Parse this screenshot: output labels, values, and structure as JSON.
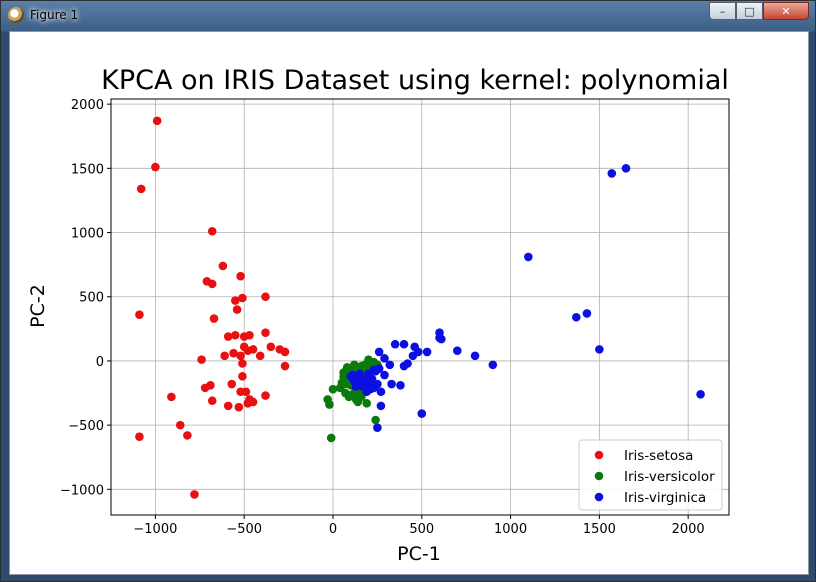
{
  "window": {
    "title": "Figure 1"
  },
  "controls": {
    "minimize": "–",
    "maximize": "□",
    "close": "✕"
  },
  "chart_data": {
    "type": "scatter",
    "title": "KPCA on IRIS Dataset using kernel: polynomial",
    "xlabel": "PC-1",
    "ylabel": "PC-2",
    "xlim": [
      -1250,
      2230
    ],
    "ylim": [
      -1200,
      2040
    ],
    "xticks": [
      -1000,
      -500,
      0,
      500,
      1000,
      1500,
      2000
    ],
    "xtick_labels": [
      "−1000",
      "−500",
      "0",
      "500",
      "1000",
      "1500",
      "2000"
    ],
    "yticks": [
      -1000,
      -500,
      0,
      500,
      1000,
      1500,
      2000
    ],
    "ytick_labels": [
      "−1000",
      "−500",
      "0",
      "500",
      "1000",
      "1500",
      "2000"
    ],
    "grid": true,
    "legend_position": "lower-right",
    "series": [
      {
        "name": "Iris-setosa",
        "color": "#e81010",
        "points": [
          [
            -990,
            1870
          ],
          [
            -1000,
            1510
          ],
          [
            -1080,
            1340
          ],
          [
            -680,
            1010
          ],
          [
            -620,
            740
          ],
          [
            -710,
            620
          ],
          [
            -680,
            600
          ],
          [
            -520,
            660
          ],
          [
            -550,
            470
          ],
          [
            -510,
            490
          ],
          [
            -540,
            400
          ],
          [
            -380,
            500
          ],
          [
            -1090,
            360
          ],
          [
            -670,
            330
          ],
          [
            -550,
            200
          ],
          [
            -500,
            190
          ],
          [
            -470,
            200
          ],
          [
            -380,
            220
          ],
          [
            -590,
            190
          ],
          [
            -500,
            110
          ],
          [
            -480,
            80
          ],
          [
            -450,
            90
          ],
          [
            -410,
            40
          ],
          [
            -350,
            110
          ],
          [
            -300,
            90
          ],
          [
            -270,
            70
          ],
          [
            -520,
            40
          ],
          [
            -610,
            40
          ],
          [
            -740,
            10
          ],
          [
            -510,
            -20
          ],
          [
            -270,
            -40
          ],
          [
            -570,
            -180
          ],
          [
            -690,
            -190
          ],
          [
            -720,
            -210
          ],
          [
            -520,
            -240
          ],
          [
            -490,
            -240
          ],
          [
            -380,
            -270
          ],
          [
            -470,
            -300
          ],
          [
            -480,
            -330
          ],
          [
            -910,
            -280
          ],
          [
            -680,
            -310
          ],
          [
            -590,
            -350
          ],
          [
            -510,
            -120
          ],
          [
            -860,
            -500
          ],
          [
            -820,
            -580
          ],
          [
            -1090,
            -590
          ],
          [
            -780,
            -1040
          ],
          [
            -530,
            -360
          ],
          [
            -560,
            60
          ],
          [
            -450,
            -320
          ]
        ]
      },
      {
        "name": "Iris-versicolor",
        "color": "#0b7a0b",
        "points": [
          [
            -30,
            -300
          ],
          [
            -20,
            -340
          ],
          [
            -10,
            -600
          ],
          [
            0,
            -220
          ],
          [
            40,
            -210
          ],
          [
            60,
            -120
          ],
          [
            50,
            -170
          ],
          [
            70,
            -180
          ],
          [
            80,
            -80
          ],
          [
            100,
            -60
          ],
          [
            110,
            -260
          ],
          [
            120,
            -90
          ],
          [
            130,
            -100
          ],
          [
            140,
            -320
          ],
          [
            150,
            -130
          ],
          [
            160,
            -40
          ],
          [
            170,
            -60
          ],
          [
            180,
            -110
          ],
          [
            190,
            -200
          ],
          [
            200,
            -150
          ],
          [
            210,
            -80
          ],
          [
            190,
            -330
          ],
          [
            240,
            -460
          ],
          [
            230,
            -10
          ],
          [
            250,
            -30
          ],
          [
            90,
            -140
          ],
          [
            110,
            -140
          ],
          [
            140,
            -170
          ],
          [
            60,
            -90
          ],
          [
            80,
            -50
          ],
          [
            120,
            -200
          ],
          [
            160,
            -280
          ],
          [
            150,
            -250
          ],
          [
            200,
            -60
          ],
          [
            170,
            -120
          ],
          [
            130,
            -300
          ],
          [
            100,
            -190
          ],
          [
            70,
            -250
          ],
          [
            90,
            -280
          ],
          [
            120,
            -30
          ],
          [
            200,
            10
          ],
          [
            180,
            -30
          ],
          [
            140,
            -50
          ],
          [
            160,
            -200
          ],
          [
            100,
            -110
          ],
          [
            60,
            -150
          ],
          [
            210,
            -40
          ],
          [
            180,
            -170
          ],
          [
            130,
            -60
          ],
          [
            150,
            -90
          ]
        ]
      },
      {
        "name": "Iris-virginica",
        "color": "#0b10e0",
        "points": [
          [
            1650,
            1500
          ],
          [
            1570,
            1460
          ],
          [
            1100,
            810
          ],
          [
            1430,
            370
          ],
          [
            1370,
            340
          ],
          [
            1500,
            90
          ],
          [
            2070,
            -260
          ],
          [
            600,
            220
          ],
          [
            600,
            180
          ],
          [
            610,
            170
          ],
          [
            400,
            130
          ],
          [
            460,
            110
          ],
          [
            480,
            70
          ],
          [
            530,
            70
          ],
          [
            450,
            40
          ],
          [
            700,
            80
          ],
          [
            800,
            40
          ],
          [
            900,
            -30
          ],
          [
            420,
            -20
          ],
          [
            400,
            -40
          ],
          [
            330,
            -180
          ],
          [
            380,
            -190
          ],
          [
            500,
            -410
          ],
          [
            250,
            -520
          ],
          [
            270,
            -350
          ],
          [
            270,
            -240
          ],
          [
            230,
            -210
          ],
          [
            210,
            -170
          ],
          [
            240,
            -80
          ],
          [
            260,
            -60
          ],
          [
            290,
            20
          ],
          [
            320,
            -30
          ],
          [
            350,
            130
          ],
          [
            260,
            70
          ],
          [
            200,
            -100
          ],
          [
            150,
            -150
          ],
          [
            130,
            -200
          ],
          [
            110,
            -110
          ],
          [
            170,
            -200
          ],
          [
            190,
            -240
          ],
          [
            220,
            -140
          ],
          [
            250,
            -180
          ],
          [
            210,
            -220
          ],
          [
            180,
            -180
          ],
          [
            230,
            -70
          ],
          [
            150,
            -100
          ],
          [
            120,
            -160
          ],
          [
            290,
            -110
          ],
          [
            100,
            -120
          ],
          [
            170,
            -140
          ]
        ]
      }
    ]
  }
}
